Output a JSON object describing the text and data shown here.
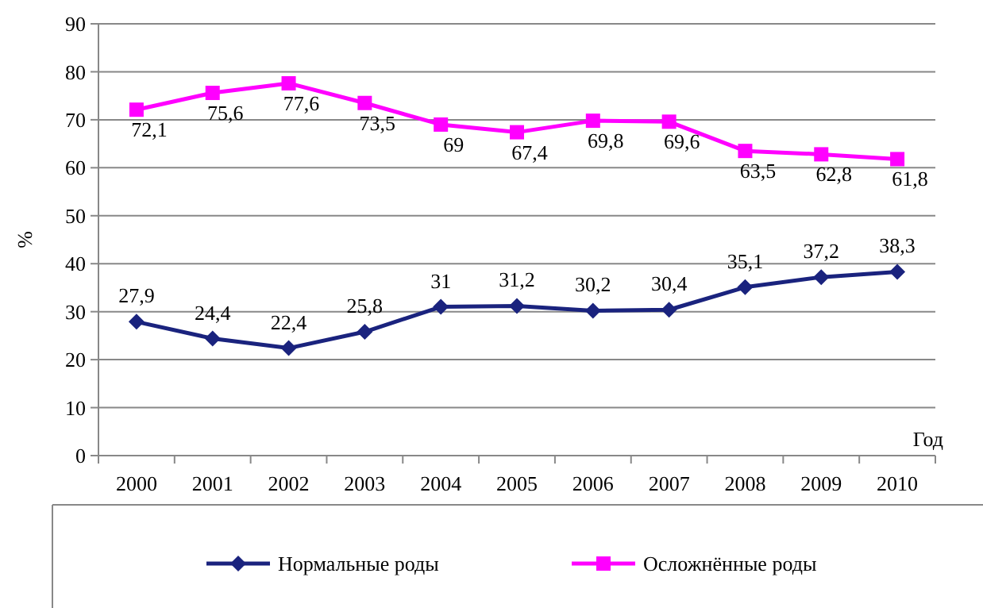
{
  "chart_data": {
    "type": "line",
    "xlabel": "Год",
    "ylabel": "%",
    "categories": [
      "2000",
      "2001",
      "2002",
      "2003",
      "2004",
      "2005",
      "2006",
      "2007",
      "2008",
      "2009",
      "2010"
    ],
    "series": [
      {
        "name": "Нормальные роды",
        "color": "#1a237e",
        "marker": "diamond",
        "values": [
          27.9,
          24.4,
          22.4,
          25.8,
          31,
          31.2,
          30.2,
          30.4,
          35.1,
          37.2,
          38.3
        ],
        "value_labels": [
          "27,9",
          "24,4",
          "22,4",
          "25,8",
          "31",
          "31,2",
          "30,2",
          "30,4",
          "35,1",
          "37,2",
          "38,3"
        ]
      },
      {
        "name": "Осложнённые роды",
        "color": "#ff00ff",
        "marker": "square",
        "values": [
          72.1,
          75.6,
          77.6,
          73.5,
          69,
          67.4,
          69.8,
          69.6,
          63.5,
          62.8,
          61.8
        ],
        "value_labels": [
          "72,1",
          "75,6",
          "77,6",
          "73,5",
          "69",
          "67,4",
          "69,8",
          "69,6",
          "63,5",
          "62,8",
          "61,8"
        ]
      }
    ],
    "ylim": [
      0,
      90
    ],
    "yticks": [
      0,
      10,
      20,
      30,
      40,
      50,
      60,
      70,
      80,
      90
    ],
    "grid": "y",
    "legend": "bottom",
    "line_style": "solid"
  }
}
